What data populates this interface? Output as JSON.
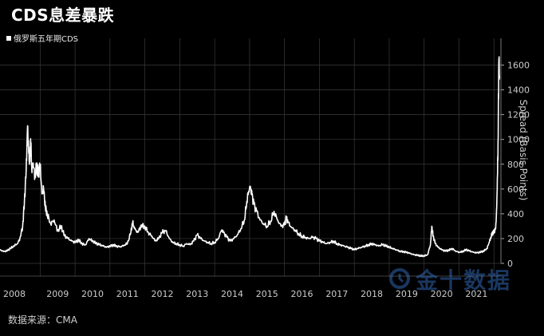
{
  "title": "CDS息差暴跌",
  "source": "数据来源：CMA",
  "watermark": {
    "text": "金十数据"
  },
  "colors": {
    "background": "#000000",
    "line": "#ffffff",
    "grid": "#3a3a3a",
    "axis_text": "#cccccc"
  },
  "chart_data": {
    "type": "line",
    "title": "CDS息差暴跌",
    "legend": [
      "俄罗斯五年期CDS"
    ],
    "legend_position": "top-left",
    "ylabel": "Spread (Basis Points)",
    "ylim": [
      0,
      1700
    ],
    "yticks": [
      0,
      200,
      400,
      600,
      800,
      1000,
      1200,
      1400,
      1600
    ],
    "y_axis_side": "right",
    "xlim": [
      2008.0,
      2022.05
    ],
    "xticks": [
      "2008",
      "2009",
      "2010",
      "2011",
      "2012",
      "2013",
      "2014",
      "2015",
      "2016",
      "2017",
      "2018",
      "2019",
      "2020",
      "2021"
    ],
    "grid": true,
    "series": [
      {
        "name": "俄罗斯五年期CDS",
        "color": "#ffffff",
        "points": [
          [
            2007.85,
            110
          ],
          [
            2007.95,
            95
          ],
          [
            2008.05,
            100
          ],
          [
            2008.15,
            120
          ],
          [
            2008.25,
            140
          ],
          [
            2008.35,
            160
          ],
          [
            2008.42,
            200
          ],
          [
            2008.5,
            300
          ],
          [
            2008.55,
            500
          ],
          [
            2008.6,
            750
          ],
          [
            2008.64,
            1110
          ],
          [
            2008.67,
            900
          ],
          [
            2008.7,
            820
          ],
          [
            2008.73,
            980
          ],
          [
            2008.76,
            760
          ],
          [
            2008.8,
            810
          ],
          [
            2008.85,
            700
          ],
          [
            2008.9,
            790
          ],
          [
            2008.95,
            720
          ],
          [
            2009.0,
            800
          ],
          [
            2009.05,
            560
          ],
          [
            2009.1,
            600
          ],
          [
            2009.15,
            450
          ],
          [
            2009.2,
            400
          ],
          [
            2009.3,
            320
          ],
          [
            2009.4,
            350
          ],
          [
            2009.5,
            260
          ],
          [
            2009.6,
            300
          ],
          [
            2009.7,
            220
          ],
          [
            2009.8,
            200
          ],
          [
            2009.9,
            180
          ],
          [
            2010.0,
            170
          ],
          [
            2010.1,
            190
          ],
          [
            2010.2,
            160
          ],
          [
            2010.3,
            150
          ],
          [
            2010.4,
            200
          ],
          [
            2010.5,
            180
          ],
          [
            2010.6,
            160
          ],
          [
            2010.7,
            150
          ],
          [
            2010.8,
            140
          ],
          [
            2010.9,
            130
          ],
          [
            2011.0,
            140
          ],
          [
            2011.1,
            150
          ],
          [
            2011.2,
            140
          ],
          [
            2011.3,
            135
          ],
          [
            2011.4,
            145
          ],
          [
            2011.5,
            160
          ],
          [
            2011.6,
            250
          ],
          [
            2011.65,
            330
          ],
          [
            2011.7,
            280
          ],
          [
            2011.8,
            250
          ],
          [
            2011.9,
            310
          ],
          [
            2012.0,
            300
          ],
          [
            2012.1,
            250
          ],
          [
            2012.2,
            220
          ],
          [
            2012.3,
            180
          ],
          [
            2012.4,
            200
          ],
          [
            2012.5,
            250
          ],
          [
            2012.6,
            260
          ],
          [
            2012.7,
            200
          ],
          [
            2012.8,
            170
          ],
          [
            2012.9,
            160
          ],
          [
            2013.0,
            150
          ],
          [
            2013.1,
            140
          ],
          [
            2013.2,
            160
          ],
          [
            2013.3,
            150
          ],
          [
            2013.4,
            180
          ],
          [
            2013.5,
            230
          ],
          [
            2013.6,
            200
          ],
          [
            2013.7,
            180
          ],
          [
            2013.8,
            170
          ],
          [
            2013.9,
            160
          ],
          [
            2014.0,
            170
          ],
          [
            2014.1,
            200
          ],
          [
            2014.2,
            270
          ],
          [
            2014.25,
            250
          ],
          [
            2014.35,
            210
          ],
          [
            2014.45,
            180
          ],
          [
            2014.55,
            200
          ],
          [
            2014.65,
            230
          ],
          [
            2014.75,
            280
          ],
          [
            2014.85,
            350
          ],
          [
            2014.92,
            500
          ],
          [
            2014.97,
            580
          ],
          [
            2015.02,
            620
          ],
          [
            2015.07,
            550
          ],
          [
            2015.12,
            480
          ],
          [
            2015.2,
            420
          ],
          [
            2015.3,
            350
          ],
          [
            2015.4,
            320
          ],
          [
            2015.5,
            300
          ],
          [
            2015.6,
            340
          ],
          [
            2015.7,
            420
          ],
          [
            2015.8,
            350
          ],
          [
            2015.9,
            300
          ],
          [
            2016.0,
            310
          ],
          [
            2016.05,
            370
          ],
          [
            2016.1,
            330
          ],
          [
            2016.2,
            290
          ],
          [
            2016.3,
            270
          ],
          [
            2016.4,
            240
          ],
          [
            2016.5,
            220
          ],
          [
            2016.6,
            210
          ],
          [
            2016.7,
            200
          ],
          [
            2016.8,
            210
          ],
          [
            2016.9,
            200
          ],
          [
            2017.0,
            180
          ],
          [
            2017.1,
            170
          ],
          [
            2017.2,
            160
          ],
          [
            2017.3,
            170
          ],
          [
            2017.4,
            180
          ],
          [
            2017.5,
            160
          ],
          [
            2017.6,
            150
          ],
          [
            2017.7,
            140
          ],
          [
            2017.8,
            130
          ],
          [
            2017.9,
            120
          ],
          [
            2018.0,
            110
          ],
          [
            2018.1,
            120
          ],
          [
            2018.2,
            130
          ],
          [
            2018.3,
            140
          ],
          [
            2018.4,
            150
          ],
          [
            2018.5,
            160
          ],
          [
            2018.6,
            150
          ],
          [
            2018.7,
            140
          ],
          [
            2018.8,
            150
          ],
          [
            2018.9,
            140
          ],
          [
            2019.0,
            130
          ],
          [
            2019.1,
            120
          ],
          [
            2019.2,
            110
          ],
          [
            2019.3,
            100
          ],
          [
            2019.4,
            95
          ],
          [
            2019.5,
            90
          ],
          [
            2019.6,
            80
          ],
          [
            2019.7,
            70
          ],
          [
            2019.8,
            65
          ],
          [
            2019.9,
            60
          ],
          [
            2020.0,
            60
          ],
          [
            2020.1,
            70
          ],
          [
            2020.18,
            150
          ],
          [
            2020.22,
            300
          ],
          [
            2020.26,
            220
          ],
          [
            2020.32,
            160
          ],
          [
            2020.4,
            130
          ],
          [
            2020.5,
            110
          ],
          [
            2020.6,
            100
          ],
          [
            2020.7,
            105
          ],
          [
            2020.8,
            120
          ],
          [
            2020.9,
            100
          ],
          [
            2021.0,
            90
          ],
          [
            2021.1,
            95
          ],
          [
            2021.2,
            110
          ],
          [
            2021.3,
            100
          ],
          [
            2021.4,
            90
          ],
          [
            2021.5,
            85
          ],
          [
            2021.6,
            90
          ],
          [
            2021.7,
            100
          ],
          [
            2021.8,
            120
          ],
          [
            2021.85,
            160
          ],
          [
            2021.9,
            200
          ],
          [
            2021.95,
            240
          ],
          [
            2022.0,
            250
          ],
          [
            2022.05,
            280
          ],
          [
            2022.08,
            450
          ],
          [
            2022.1,
            700
          ],
          [
            2022.12,
            1000
          ],
          [
            2022.14,
            1650
          ],
          [
            2022.16,
            1500
          ]
        ]
      }
    ]
  }
}
